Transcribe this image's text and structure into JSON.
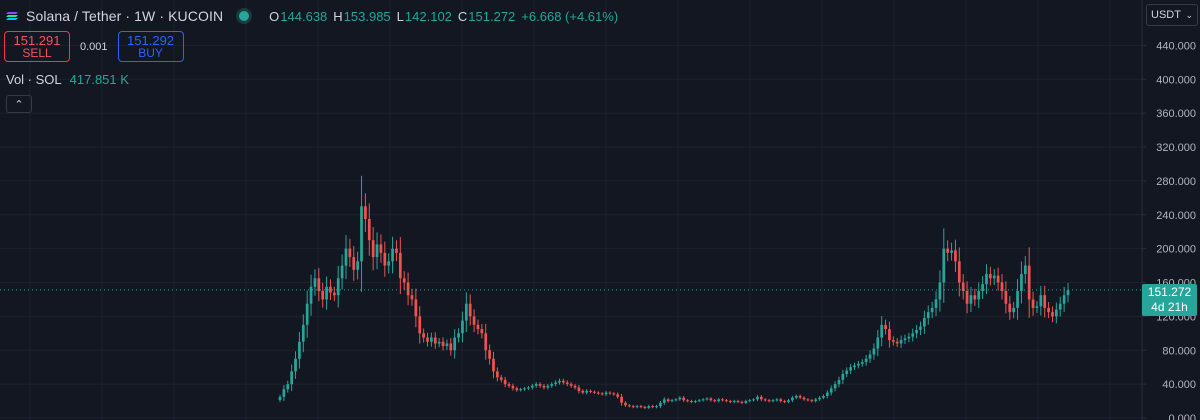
{
  "header": {
    "title": "Solana / Tether · 1W · KUCOIN",
    "ohlc": [
      {
        "k": "O",
        "v": "144.638"
      },
      {
        "k": "H",
        "v": "153.985"
      },
      {
        "k": "L",
        "v": "142.102"
      },
      {
        "k": "C",
        "v": "151.272"
      }
    ],
    "change": "+6.668 (+4.61%)"
  },
  "trade": {
    "sell_price": "151.291",
    "sell_label": "SELL",
    "spread": "0.001",
    "buy_price": "151.292",
    "buy_label": "BUY"
  },
  "volume": {
    "label": "Vol · SOL",
    "value": "417.851 K"
  },
  "currency": {
    "label": "USDT"
  },
  "price_label": {
    "price": "151.272",
    "countdown": "4d 21h"
  },
  "colors": {
    "up": "#26a69a",
    "down": "#ef5350",
    "background": "#131722",
    "grid": "#1e222d"
  },
  "chart_data": {
    "type": "candlestick",
    "timeframe": "1W",
    "y_ticks": [
      "0.000",
      "40.000",
      "80.000",
      "120.000",
      "160.000",
      "200.000",
      "240.000",
      "280.000",
      "320.000",
      "360.000",
      "400.000",
      "440.000"
    ],
    "ylim": [
      0,
      470
    ],
    "current_price": 151.272,
    "close_series": [
      25,
      34,
      40,
      55,
      70,
      90,
      110,
      135,
      155,
      165,
      150,
      140,
      155,
      148,
      145,
      165,
      180,
      200,
      190,
      175,
      185,
      250,
      235,
      210,
      190,
      205,
      195,
      180,
      185,
      200,
      195,
      165,
      160,
      145,
      140,
      120,
      100,
      95,
      90,
      95,
      88,
      90,
      85,
      88,
      80,
      95,
      100,
      115,
      135,
      120,
      110,
      105,
      100,
      80,
      70,
      55,
      48,
      45,
      40,
      38,
      35,
      33,
      34,
      35,
      36,
      38,
      40,
      38,
      36,
      38,
      40,
      42,
      44,
      42,
      40,
      38,
      36,
      32,
      30,
      32,
      31,
      30,
      29,
      28,
      30,
      29,
      28,
      25,
      18,
      15,
      14,
      13,
      14,
      13,
      12,
      14,
      13,
      14,
      18,
      22,
      20,
      21,
      22,
      24,
      21,
      20,
      19,
      20,
      21,
      22,
      23,
      21,
      20,
      22,
      21,
      20,
      19,
      20,
      19,
      18,
      20,
      21,
      22,
      25,
      22,
      21,
      20,
      21,
      22,
      20,
      19,
      21,
      24,
      26,
      24,
      22,
      21,
      20,
      22,
      24,
      26,
      30,
      35,
      40,
      45,
      52,
      56,
      60,
      62,
      64,
      66,
      70,
      75,
      82,
      95,
      110,
      105,
      92,
      90,
      88,
      92,
      94,
      96,
      100,
      104,
      108,
      118,
      125,
      130,
      140,
      160,
      200,
      195,
      198,
      185,
      160,
      150,
      135,
      145,
      140,
      150,
      158,
      170,
      165,
      168,
      160,
      150,
      135,
      125,
      130,
      150,
      170,
      180,
      140,
      130,
      132,
      145,
      130,
      125,
      120,
      128,
      135,
      145,
      151
    ],
    "high": 260,
    "low": 10
  }
}
